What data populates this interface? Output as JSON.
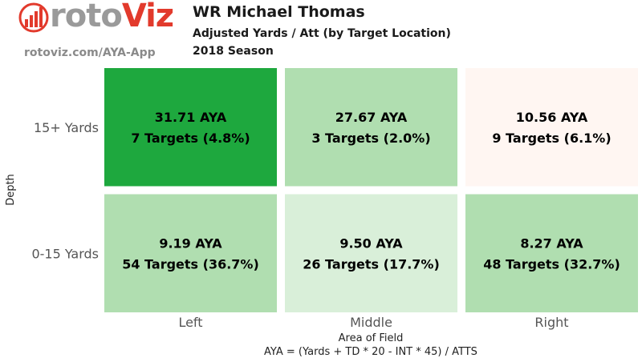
{
  "brand": {
    "name_part1": "roto",
    "name_part2": "Viz",
    "url": "rotoviz.com/AYA-App",
    "colors": {
      "gray": "#9a9a9a",
      "red": "#e23a2c"
    }
  },
  "header": {
    "title": "WR Michael Thomas",
    "subtitle": "Adjusted Yards / Att (by Target Location)",
    "season": "2018 Season"
  },
  "chart_data": {
    "type": "heatmap",
    "x_categories": [
      "Left",
      "Middle",
      "Right"
    ],
    "y_categories": [
      "15+ Yards",
      "0-15 Yards"
    ],
    "xlabel": "Area of Field",
    "xlabel_note": "AYA = (Yards + TD * 20 - INT * 45) / ATTS",
    "ylabel": "Depth",
    "cells": [
      {
        "x": "Left",
        "y": "15+ Yards",
        "aya": 31.71,
        "targets": 7,
        "pct": 4.8,
        "aya_label": "31.71 AYA",
        "targets_label": "7 Targets (4.8%)",
        "color": "#1ea83e"
      },
      {
        "x": "Middle",
        "y": "15+ Yards",
        "aya": 27.67,
        "targets": 3,
        "pct": 2.0,
        "aya_label": "27.67 AYA",
        "targets_label": "3 Targets (2.0%)",
        "color": "#b0deb0"
      },
      {
        "x": "Right",
        "y": "15+ Yards",
        "aya": 10.56,
        "targets": 9,
        "pct": 6.1,
        "aya_label": "10.56 AYA",
        "targets_label": "9 Targets (6.1%)",
        "color": "#fff6f2"
      },
      {
        "x": "Left",
        "y": "0-15 Yards",
        "aya": 9.19,
        "targets": 54,
        "pct": 36.7,
        "aya_label": "9.19 AYA",
        "targets_label": "54 Targets (36.7%)",
        "color": "#b0deb0"
      },
      {
        "x": "Middle",
        "y": "0-15 Yards",
        "aya": 9.5,
        "targets": 26,
        "pct": 17.7,
        "aya_label": "9.50 AYA",
        "targets_label": "26 Targets (17.7%)",
        "color": "#d9efd9"
      },
      {
        "x": "Right",
        "y": "0-15 Yards",
        "aya": 8.27,
        "targets": 48,
        "pct": 32.7,
        "aya_label": "8.27 AYA",
        "targets_label": "48 Targets (32.7%)",
        "color": "#b0deb0"
      }
    ]
  }
}
